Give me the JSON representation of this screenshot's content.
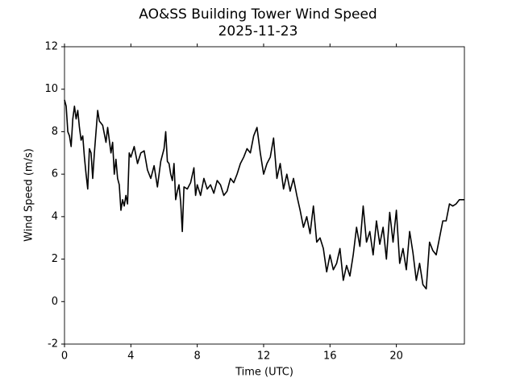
{
  "chart_data": {
    "type": "line",
    "title": "AO&SS Building Tower Wind Speed",
    "subtitle": "2025-11-23",
    "x_label": "Time (UTC)",
    "y_label": "Wind Speed (m/s)",
    "color": "#000000",
    "xlim": [
      0,
      24.1
    ],
    "ylim": [
      -2,
      12
    ],
    "xticks": [
      0,
      4,
      8,
      12,
      16,
      20
    ],
    "yticks": [
      -2,
      0,
      2,
      4,
      6,
      8,
      10,
      12
    ],
    "x": [
      0,
      0.1,
      0.2,
      0.3,
      0.4,
      0.5,
      0.6,
      0.7,
      0.8,
      0.9,
      1.0,
      1.1,
      1.2,
      1.3,
      1.4,
      1.5,
      1.6,
      1.7,
      1.8,
      2.0,
      2.1,
      2.3,
      2.5,
      2.6,
      2.8,
      2.9,
      3.0,
      3.1,
      3.2,
      3.3,
      3.4,
      3.5,
      3.6,
      3.7,
      3.8,
      3.9,
      4.0,
      4.2,
      4.4,
      4.6,
      4.8,
      5.0,
      5.2,
      5.4,
      5.6,
      5.8,
      6.0,
      6.1,
      6.2,
      6.3,
      6.4,
      6.5,
      6.6,
      6.7,
      6.8,
      6.9,
      7.0,
      7.1,
      7.2,
      7.4,
      7.6,
      7.8,
      7.9,
      8.0,
      8.2,
      8.4,
      8.6,
      8.8,
      9.0,
      9.2,
      9.4,
      9.6,
      9.8,
      10.0,
      10.2,
      10.4,
      10.6,
      10.8,
      11.0,
      11.2,
      11.4,
      11.6,
      11.8,
      12.0,
      12.2,
      12.4,
      12.6,
      12.8,
      13.0,
      13.2,
      13.4,
      13.6,
      13.8,
      14.0,
      14.2,
      14.4,
      14.6,
      14.8,
      15.0,
      15.2,
      15.4,
      15.6,
      15.8,
      16.0,
      16.2,
      16.4,
      16.6,
      16.8,
      17.0,
      17.2,
      17.4,
      17.6,
      17.8,
      18.0,
      18.2,
      18.4,
      18.6,
      18.8,
      19.0,
      19.2,
      19.4,
      19.6,
      19.8,
      20.0,
      20.2,
      20.4,
      20.6,
      20.8,
      21.0,
      21.2,
      21.4,
      21.6,
      21.8,
      22.0,
      22.2,
      22.4,
      22.6,
      22.8,
      23.0,
      23.2,
      23.4,
      23.6,
      23.8,
      24.1
    ],
    "values": [
      9.5,
      9.2,
      8.0,
      7.8,
      7.3,
      8.6,
      9.2,
      8.6,
      9.0,
      8.2,
      7.6,
      7.8,
      6.8,
      6.0,
      5.3,
      7.2,
      7.0,
      5.8,
      7.0,
      9.0,
      8.5,
      8.3,
      7.5,
      8.2,
      7.0,
      7.5,
      6.0,
      6.7,
      5.8,
      5.5,
      4.3,
      4.8,
      4.5,
      5.0,
      4.6,
      7.0,
      6.8,
      7.3,
      6.5,
      7.0,
      7.1,
      6.2,
      5.8,
      6.4,
      5.4,
      6.6,
      7.2,
      8.0,
      6.6,
      6.5,
      6.0,
      5.7,
      6.5,
      4.8,
      5.2,
      5.5,
      4.7,
      3.3,
      5.4,
      5.3,
      5.6,
      6.3,
      5.0,
      5.5,
      5.0,
      5.8,
      5.3,
      5.5,
      5.1,
      5.7,
      5.5,
      5.0,
      5.2,
      5.8,
      5.6,
      6.0,
      6.5,
      6.8,
      7.2,
      7.0,
      7.8,
      8.2,
      7.0,
      6.0,
      6.5,
      6.8,
      7.7,
      5.8,
      6.5,
      5.3,
      6.0,
      5.2,
      5.8,
      5.0,
      4.3,
      3.5,
      4.0,
      3.2,
      4.5,
      2.8,
      3.0,
      2.5,
      1.4,
      2.2,
      1.5,
      1.8,
      2.5,
      1.0,
      1.7,
      1.2,
      2.2,
      3.5,
      2.6,
      4.5,
      2.8,
      3.3,
      2.2,
      3.8,
      2.7,
      3.5,
      2.0,
      4.2,
      2.8,
      4.3,
      1.8,
      2.5,
      1.5,
      3.3,
      2.3,
      1.0,
      1.8,
      0.8,
      0.6,
      2.8,
      2.4,
      2.2,
      3.0,
      3.8,
      3.8,
      4.6,
      4.5,
      4.6,
      4.8,
      4.8
    ]
  }
}
